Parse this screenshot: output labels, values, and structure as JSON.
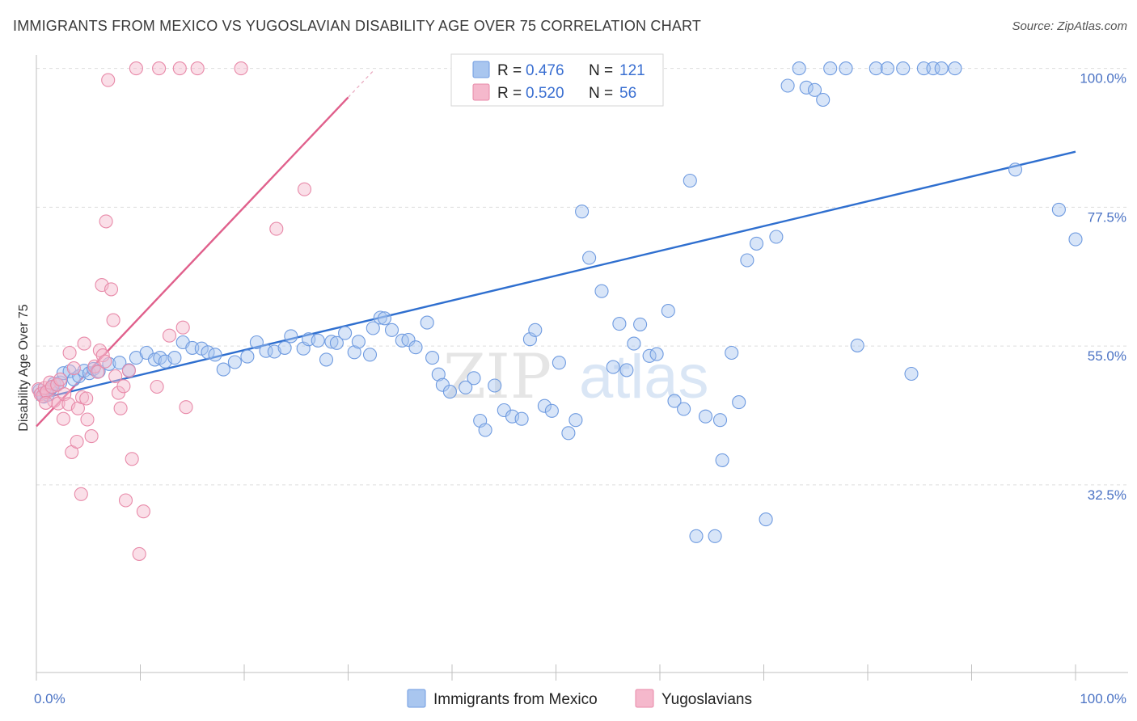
{
  "title": "IMMIGRANTS FROM MEXICO VS YUGOSLAVIAN DISABILITY AGE OVER 75 CORRELATION CHART",
  "source": "Source: ZipAtlas.com",
  "watermark": {
    "zip": "ZIP",
    "atlas": "atlas"
  },
  "colors": {
    "blue_fill": "#a9c6ef",
    "blue_stroke": "#6f9be0",
    "blue_line": "#2f6fcf",
    "pink_fill": "#f5b8cc",
    "pink_stroke": "#e88aa9",
    "pink_line": "#e0608c",
    "grid": "#dddddd",
    "axis_label": "#4a72c4"
  },
  "legend": {
    "rows": [
      {
        "r_label": "R = ",
        "r_value": "0.476",
        "n_label": "N = ",
        "n_value": "121",
        "color": "blue"
      },
      {
        "r_label": "R = ",
        "r_value": "0.520",
        "n_label": "N = ",
        "n_value": "56",
        "color": "pink"
      }
    ]
  },
  "bottom_legend": [
    "Immigrants from Mexico",
    "Yugoslavians"
  ],
  "chart_data": {
    "type": "scatter",
    "title": "IMMIGRANTS FROM MEXICO VS YUGOSLAVIAN DISABILITY AGE OVER 75 CORRELATION CHART",
    "xlabel": "",
    "ylabel": "Disability Age Over 75",
    "xlim": [
      0,
      100
    ],
    "ylim": [
      10,
      103
    ],
    "x_tick_labels": [
      "0.0%",
      "100.0%"
    ],
    "y_tick_labels": [
      "100.0%",
      "77.5%",
      "55.0%",
      "32.5%"
    ],
    "y_ticks": [
      100,
      77.5,
      55,
      32.5
    ],
    "grid": true,
    "legend_position": "top-center",
    "series": [
      {
        "name": "Immigrants from Mexico",
        "color": "blue",
        "r": 0.476,
        "n": 121,
        "trend": {
          "x": [
            0,
            100
          ],
          "y": [
            46.3,
            86.5
          ]
        },
        "points": [
          [
            0.3,
            47.8
          ],
          [
            0.5,
            47.3
          ],
          [
            0.7,
            46.8
          ],
          [
            0.9,
            47.5
          ],
          [
            1.1,
            47.1
          ],
          [
            1.3,
            47.9
          ],
          [
            1.5,
            48.3
          ],
          [
            1.7,
            48.9
          ],
          [
            2.0,
            48.8
          ],
          [
            2.3,
            49.1
          ],
          [
            2.6,
            50.6
          ],
          [
            3.2,
            50.9
          ],
          [
            3.6,
            49.6
          ],
          [
            4.1,
            50.1
          ],
          [
            4.6,
            51.0
          ],
          [
            5.1,
            50.6
          ],
          [
            5.5,
            51.3
          ],
          [
            6.0,
            50.9
          ],
          [
            7.0,
            52.1
          ],
          [
            8.0,
            52.3
          ],
          [
            8.9,
            51.1
          ],
          [
            9.6,
            53.1
          ],
          [
            10.6,
            53.9
          ],
          [
            11.4,
            52.8
          ],
          [
            11.9,
            53.1
          ],
          [
            12.4,
            52.5
          ],
          [
            13.3,
            53.1
          ],
          [
            14.1,
            55.6
          ],
          [
            15.0,
            54.7
          ],
          [
            15.9,
            54.6
          ],
          [
            16.5,
            54.0
          ],
          [
            17.2,
            53.6
          ],
          [
            18.0,
            51.2
          ],
          [
            19.1,
            52.4
          ],
          [
            20.3,
            53.3
          ],
          [
            21.2,
            55.6
          ],
          [
            22.1,
            54.2
          ],
          [
            22.9,
            54.1
          ],
          [
            23.9,
            54.7
          ],
          [
            24.5,
            56.6
          ],
          [
            25.7,
            54.6
          ],
          [
            26.2,
            56.1
          ],
          [
            27.1,
            55.9
          ],
          [
            27.9,
            52.8
          ],
          [
            28.4,
            55.7
          ],
          [
            28.9,
            55.5
          ],
          [
            29.7,
            57.1
          ],
          [
            30.6,
            54.0
          ],
          [
            31.0,
            55.7
          ],
          [
            32.1,
            53.6
          ],
          [
            32.4,
            57.9
          ],
          [
            33.1,
            59.6
          ],
          [
            33.5,
            59.5
          ],
          [
            34.2,
            57.6
          ],
          [
            35.2,
            55.9
          ],
          [
            35.8,
            56.0
          ],
          [
            36.5,
            54.8
          ],
          [
            37.6,
            58.8
          ],
          [
            38.1,
            53.1
          ],
          [
            38.7,
            50.4
          ],
          [
            39.1,
            48.7
          ],
          [
            39.8,
            47.6
          ],
          [
            41.3,
            48.3
          ],
          [
            42.1,
            49.8
          ],
          [
            42.7,
            42.9
          ],
          [
            43.2,
            41.4
          ],
          [
            44.1,
            48.6
          ],
          [
            45.0,
            44.6
          ],
          [
            45.8,
            43.6
          ],
          [
            46.7,
            43.2
          ],
          [
            47.5,
            56.1
          ],
          [
            48.0,
            57.6
          ],
          [
            48.9,
            45.3
          ],
          [
            49.6,
            44.5
          ],
          [
            50.3,
            52.3
          ],
          [
            51.2,
            40.9
          ],
          [
            51.9,
            43.0
          ],
          [
            52.5,
            76.8
          ],
          [
            53.2,
            69.3
          ],
          [
            54.4,
            63.9
          ],
          [
            55.5,
            51.6
          ],
          [
            56.1,
            58.6
          ],
          [
            56.8,
            51.1
          ],
          [
            57.5,
            55.4
          ],
          [
            58.1,
            58.5
          ],
          [
            59.0,
            53.4
          ],
          [
            59.7,
            53.7
          ],
          [
            60.8,
            60.7
          ],
          [
            61.4,
            46.1
          ],
          [
            62.3,
            44.8
          ],
          [
            62.9,
            81.8
          ],
          [
            63.5,
            24.2
          ],
          [
            64.4,
            43.6
          ],
          [
            65.3,
            24.2
          ],
          [
            65.8,
            43.0
          ],
          [
            66.0,
            36.5
          ],
          [
            66.9,
            53.9
          ],
          [
            67.6,
            45.9
          ],
          [
            68.4,
            68.9
          ],
          [
            69.3,
            71.6
          ],
          [
            70.2,
            26.9
          ],
          [
            71.2,
            72.7
          ],
          [
            72.3,
            97.2
          ],
          [
            73.4,
            100.0
          ],
          [
            74.1,
            96.9
          ],
          [
            74.9,
            96.5
          ],
          [
            75.7,
            94.9
          ],
          [
            76.4,
            100.0
          ],
          [
            77.9,
            100.0
          ],
          [
            79.0,
            55.1
          ],
          [
            80.8,
            100.0
          ],
          [
            81.9,
            100.0
          ],
          [
            83.4,
            100.0
          ],
          [
            84.2,
            50.5
          ],
          [
            85.4,
            100.0
          ],
          [
            86.3,
            100.0
          ],
          [
            87.1,
            100.0
          ],
          [
            88.4,
            100.0
          ],
          [
            94.2,
            83.6
          ],
          [
            98.4,
            77.1
          ],
          [
            100.0,
            72.3
          ]
        ]
      },
      {
        "name": "Yugoslavians",
        "color": "pink",
        "r": 0.52,
        "n": 56,
        "trend": {
          "x": [
            0,
            30
          ],
          "y": [
            42.0,
            95.3
          ]
        },
        "points": [
          [
            0.2,
            48.0
          ],
          [
            0.4,
            47.2
          ],
          [
            0.6,
            46.9
          ],
          [
            0.8,
            48.2
          ],
          [
            1.0,
            47.6
          ],
          [
            1.3,
            49.1
          ],
          [
            1.5,
            48.4
          ],
          [
            1.7,
            46.1
          ],
          [
            2.0,
            48.7
          ],
          [
            2.1,
            45.7
          ],
          [
            2.3,
            49.6
          ],
          [
            2.6,
            43.2
          ],
          [
            2.7,
            47.2
          ],
          [
            3.1,
            45.6
          ],
          [
            3.2,
            53.9
          ],
          [
            3.4,
            37.8
          ],
          [
            3.6,
            51.4
          ],
          [
            3.9,
            39.5
          ],
          [
            4.0,
            44.9
          ],
          [
            4.3,
            31.0
          ],
          [
            4.4,
            46.7
          ],
          [
            4.6,
            55.4
          ],
          [
            4.8,
            46.5
          ],
          [
            4.9,
            43.1
          ],
          [
            5.3,
            40.4
          ],
          [
            5.6,
            51.7
          ],
          [
            5.9,
            50.8
          ],
          [
            6.1,
            54.3
          ],
          [
            6.3,
            64.9
          ],
          [
            6.4,
            53.5
          ],
          [
            6.6,
            52.5
          ],
          [
            6.7,
            75.2
          ],
          [
            6.9,
            98.1
          ],
          [
            7.2,
            64.2
          ],
          [
            7.4,
            59.2
          ],
          [
            7.6,
            50.1
          ],
          [
            7.9,
            47.4
          ],
          [
            8.1,
            44.9
          ],
          [
            8.4,
            48.5
          ],
          [
            8.6,
            30.0
          ],
          [
            8.9,
            51.0
          ],
          [
            9.2,
            36.7
          ],
          [
            9.6,
            100.0
          ],
          [
            9.9,
            21.3
          ],
          [
            10.3,
            28.2
          ],
          [
            11.6,
            48.4
          ],
          [
            11.8,
            100.0
          ],
          [
            12.8,
            56.7
          ],
          [
            13.8,
            100.0
          ],
          [
            14.1,
            58.0
          ],
          [
            14.4,
            45.1
          ],
          [
            15.5,
            100.0
          ],
          [
            19.7,
            100.0
          ],
          [
            23.1,
            74.0
          ],
          [
            25.8,
            80.4
          ],
          [
            0.9,
            45.8
          ]
        ]
      }
    ]
  }
}
